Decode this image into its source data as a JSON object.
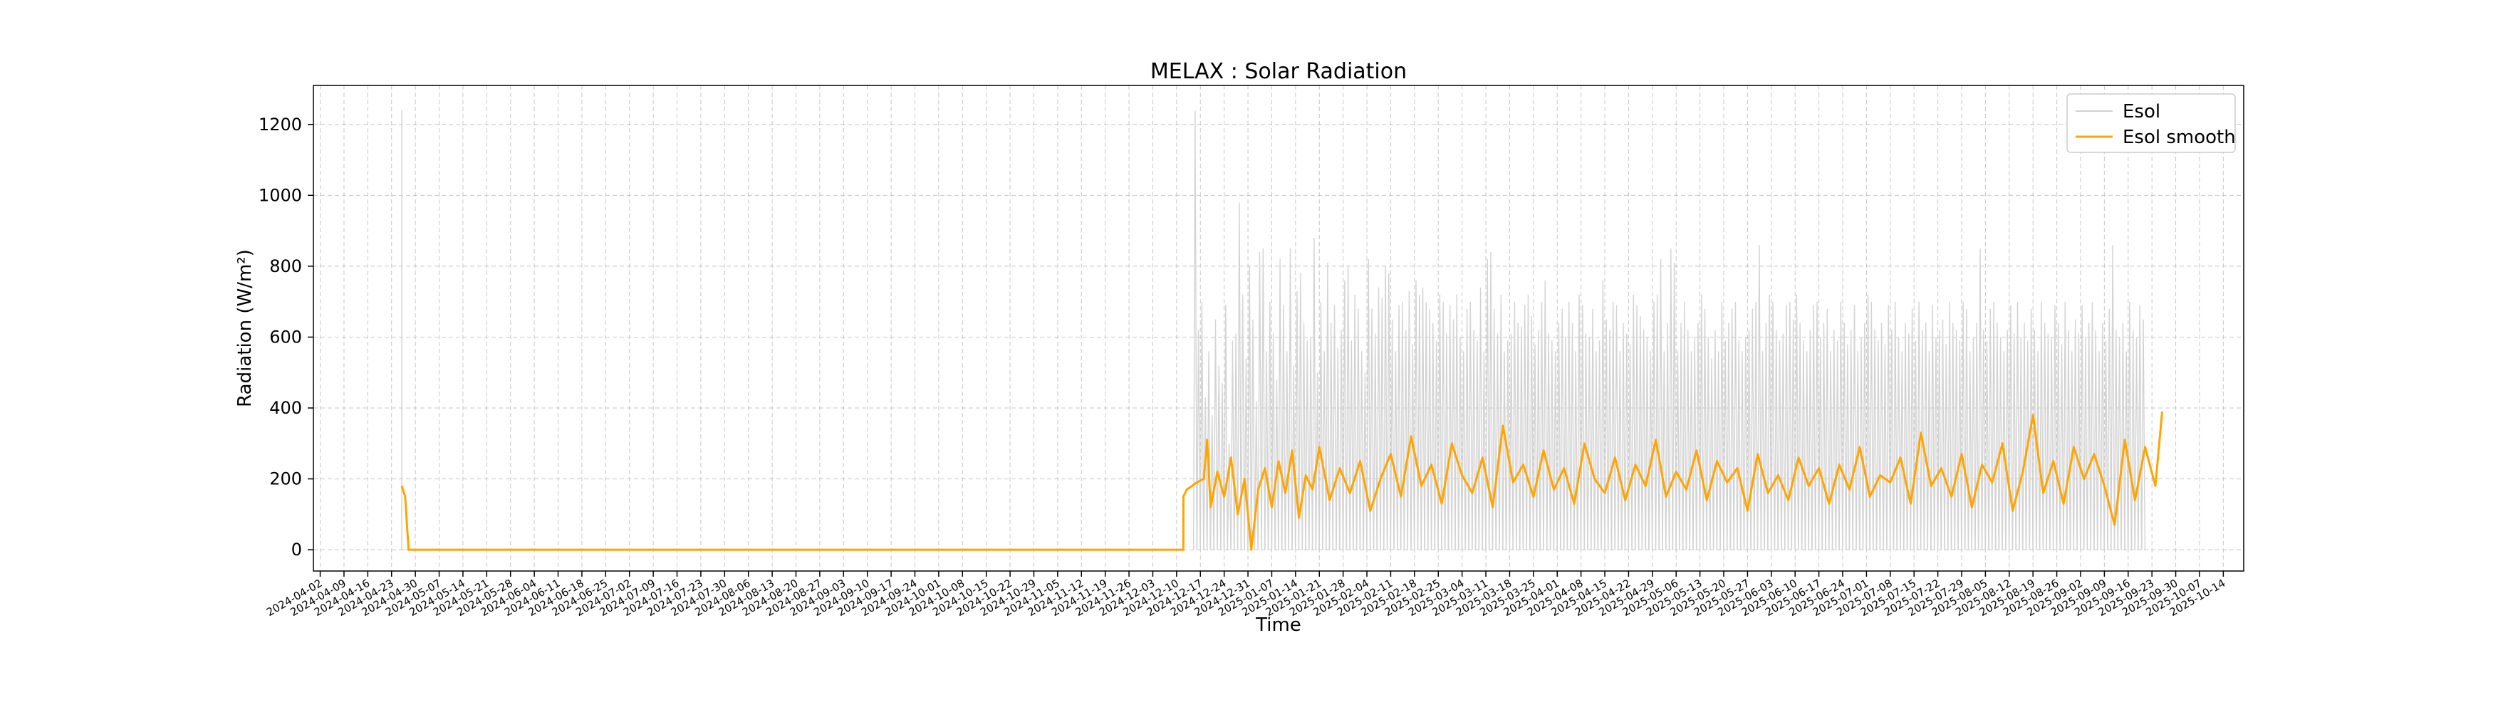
{
  "chart_data": {
    "type": "line",
    "title": "MELAX : Solar Radiation",
    "xlabel": "Time",
    "ylabel": "Radiation (W/m²)",
    "ylim": [
      -60,
      1310
    ],
    "yticks": [
      0,
      200,
      400,
      600,
      800,
      1000,
      1200
    ],
    "xlim": [
      "2024-03-31",
      "2025-10-20"
    ],
    "grid": true,
    "legend_position": "top-right",
    "xtick_labels": [
      "2024-04-02",
      "2024-04-09",
      "2024-04-16",
      "2024-04-23",
      "2024-04-30",
      "2024-05-07",
      "2024-05-14",
      "2024-05-21",
      "2024-05-28",
      "2024-06-04",
      "2024-06-11",
      "2024-06-18",
      "2024-06-25",
      "2024-07-02",
      "2024-07-09",
      "2024-07-16",
      "2024-07-23",
      "2024-07-30",
      "2024-08-06",
      "2024-08-13",
      "2024-08-20",
      "2024-08-27",
      "2024-09-03",
      "2024-09-10",
      "2024-09-17",
      "2024-09-24",
      "2024-10-01",
      "2024-10-08",
      "2024-10-15",
      "2024-10-22",
      "2024-10-29",
      "2024-11-05",
      "2024-11-12",
      "2024-11-19",
      "2024-11-26",
      "2024-12-03",
      "2024-12-10",
      "2024-12-17",
      "2024-12-24",
      "2024-12-31",
      "2025-01-07",
      "2025-01-14",
      "2025-01-21",
      "2025-01-28",
      "2025-02-04",
      "2025-02-11",
      "2025-02-18",
      "2025-02-25",
      "2025-03-04",
      "2025-03-11",
      "2025-03-18",
      "2025-03-25",
      "2025-04-01",
      "2025-04-08",
      "2025-04-15",
      "2025-04-22",
      "2025-04-29",
      "2025-05-06",
      "2025-05-13",
      "2025-05-20",
      "2025-05-27",
      "2025-06-03",
      "2025-06-10",
      "2025-06-17",
      "2025-06-24",
      "2025-07-01",
      "2025-07-08",
      "2025-07-15",
      "2025-07-22",
      "2025-07-29",
      "2025-08-05",
      "2025-08-12",
      "2025-08-19",
      "2025-08-26",
      "2025-09-02",
      "2025-09-09",
      "2025-09-16",
      "2025-09-23",
      "2025-09-30",
      "2025-10-07",
      "2025-10-14"
    ],
    "series": [
      {
        "name": "Esol",
        "color": "#d3d3d3",
        "description_peaks": "daily cycle 0 to peak; two early spikes ~1240",
        "segments": [
          {
            "x": [
              "2024-04-26",
              "2024-04-26",
              "2024-04-26",
              "2024-04-27"
            ],
            "y": [
              0,
              1240,
              0,
              0
            ]
          },
          {
            "x_start": "2024-12-15",
            "x_end": "2025-09-23",
            "daily_peaks": [
              1240,
              620,
              700,
              430,
              560,
              380,
              650,
              520,
              470,
              690,
              300,
              590,
              610,
              980,
              720,
              540,
              800,
              650,
              420,
              840,
              850,
              560,
              700,
              610,
              480,
              820,
              690,
              560,
              850,
              520,
              730,
              780,
              640,
              590,
              600,
              880,
              500,
              700,
              560,
              810,
              640,
              690,
              570,
              620,
              760,
              800,
              590,
              720,
              680,
              560,
              500,
              820,
              680,
              610,
              740,
              710,
              800,
              780,
              650,
              560,
              690,
              700,
              620,
              730,
              580,
              760,
              720,
              740,
              700,
              680,
              640,
              590,
              720,
              700,
              610,
              690,
              650,
              720,
              600,
              560,
              680,
              700,
              620,
              590,
              740,
              560,
              820,
              840,
              680,
              610,
              720,
              560,
              590,
              610,
              700,
              640,
              630,
              690,
              720,
              660,
              580,
              620,
              700,
              760,
              610,
              590,
              560,
              640,
              680,
              600,
              700,
              640,
              560,
              720,
              690,
              610,
              600,
              680,
              560,
              590,
              760,
              650,
              620,
              700,
              690,
              560,
              640,
              610,
              580,
              720,
              690,
              660,
              620,
              600,
              560,
              700,
              720,
              820,
              560,
              640,
              850,
              810,
              560,
              640,
              700,
              620,
              560,
              600,
              640,
              720,
              680,
              600,
              540,
              620,
              560,
              700,
              590,
              640,
              680,
              700,
              590,
              560,
              600,
              620,
              680,
              700,
              860,
              560,
              640,
              720,
              700,
              620,
              590,
              610,
              690,
              700,
              650,
              720,
              640,
              590,
              560,
              620,
              690,
              700,
              600,
              640,
              680,
              560,
              620,
              590,
              700,
              640,
              580,
              620,
              690,
              560,
              600,
              640,
              720,
              700,
              620,
              590,
              640,
              580,
              690,
              620,
              700,
              600,
              560,
              640,
              610,
              680,
              590,
              700,
              620,
              640,
              560,
              690,
              600,
              620,
              650,
              580,
              700,
              640,
              620,
              590,
              700,
              680,
              560,
              600,
              640,
              850,
              620,
              590,
              680,
              700,
              640,
              600,
              560,
              620,
              690,
              610,
              700,
              600,
              640,
              590,
              680,
              620,
              560,
              700,
              640,
              610,
              600,
              690,
              640,
              580,
              700,
              620,
              560,
              650,
              610,
              690,
              600,
              640,
              700,
              620,
              560,
              640,
              590,
              680,
              860,
              620,
              600,
              640,
              560,
              700,
              620,
              600,
              690,
              650
            ]
          }
        ]
      },
      {
        "name": "Esol smooth",
        "color": "#ffa500",
        "x": [
          "2024-04-26",
          "2024-04-27",
          "2024-04-28",
          "2024-04-29",
          "2024-05-15",
          "2024-06-15",
          "2024-07-15",
          "2024-08-15",
          "2024-09-15",
          "2024-10-15",
          "2024-11-15",
          "2024-12-12",
          "2024-12-12",
          "2024-12-13",
          "2024-12-16",
          "2024-12-18",
          "2024-12-19",
          "2024-12-20",
          "2024-12-22",
          "2024-12-24",
          "2024-12-26",
          "2024-12-28",
          "2024-12-30",
          "2025-01-01",
          "2025-01-03",
          "2025-01-05",
          "2025-01-07",
          "2025-01-09",
          "2025-01-11",
          "2025-01-13",
          "2025-01-15",
          "2025-01-17",
          "2025-01-19",
          "2025-01-21",
          "2025-01-24",
          "2025-01-27",
          "2025-01-30",
          "2025-02-02",
          "2025-02-05",
          "2025-02-08",
          "2025-02-11",
          "2025-02-14",
          "2025-02-17",
          "2025-02-20",
          "2025-02-23",
          "2025-02-26",
          "2025-03-01",
          "2025-03-04",
          "2025-03-07",
          "2025-03-10",
          "2025-03-13",
          "2025-03-16",
          "2025-03-19",
          "2025-03-22",
          "2025-03-25",
          "2025-03-28",
          "2025-03-31",
          "2025-04-03",
          "2025-04-06",
          "2025-04-09",
          "2025-04-12",
          "2025-04-15",
          "2025-04-18",
          "2025-04-21",
          "2025-04-24",
          "2025-04-27",
          "2025-04-30",
          "2025-05-03",
          "2025-05-06",
          "2025-05-09",
          "2025-05-12",
          "2025-05-15",
          "2025-05-18",
          "2025-05-21",
          "2025-05-24",
          "2025-05-27",
          "2025-05-30",
          "2025-06-02",
          "2025-06-05",
          "2025-06-08",
          "2025-06-11",
          "2025-06-14",
          "2025-06-17",
          "2025-06-20",
          "2025-06-23",
          "2025-06-26",
          "2025-06-29",
          "2025-07-02",
          "2025-07-05",
          "2025-07-08",
          "2025-07-11",
          "2025-07-14",
          "2025-07-17",
          "2025-07-20",
          "2025-07-23",
          "2025-07-26",
          "2025-07-29",
          "2025-08-01",
          "2025-08-04",
          "2025-08-07",
          "2025-08-10",
          "2025-08-13",
          "2025-08-16",
          "2025-08-19",
          "2025-08-22",
          "2025-08-25",
          "2025-08-28",
          "2025-08-31",
          "2025-09-03",
          "2025-09-06",
          "2025-09-09",
          "2025-09-12",
          "2025-09-15",
          "2025-09-18",
          "2025-09-21",
          "2025-09-24",
          "2025-09-26"
        ],
        "y": [
          180,
          150,
          0,
          0,
          0,
          0,
          0,
          0,
          0,
          0,
          0,
          0,
          150,
          170,
          190,
          200,
          310,
          120,
          220,
          150,
          260,
          100,
          200,
          0,
          170,
          230,
          120,
          250,
          160,
          280,
          90,
          210,
          170,
          290,
          140,
          230,
          160,
          250,
          110,
          200,
          270,
          150,
          320,
          180,
          240,
          130,
          300,
          210,
          160,
          260,
          120,
          350,
          190,
          240,
          150,
          280,
          170,
          230,
          130,
          300,
          200,
          160,
          260,
          140,
          240,
          180,
          310,
          150,
          220,
          170,
          280,
          140,
          250,
          190,
          230,
          110,
          270,
          160,
          210,
          140,
          260,
          180,
          230,
          130,
          240,
          170,
          290,
          150,
          210,
          190,
          260,
          130,
          330,
          180,
          230,
          150,
          270,
          120,
          240,
          190,
          300,
          110,
          220,
          380,
          160,
          250,
          130,
          290,
          200,
          270,
          180,
          70,
          310,
          140,
          290,
          180,
          390
        ]
      }
    ]
  }
}
